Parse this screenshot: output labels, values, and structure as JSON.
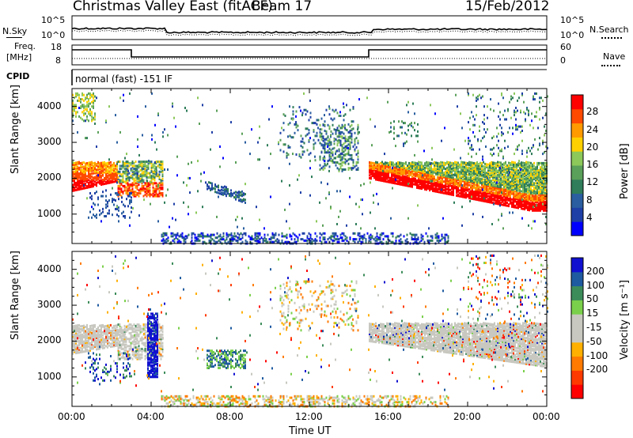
{
  "header": {
    "site": "Christmas Valley East",
    "fit": "(fitACF)",
    "beam": "Beam 17",
    "date": "15/Feb/2012"
  },
  "top_panels": {
    "nsky_label": "N.Sky",
    "nsky_ticks": [
      "10^5",
      "10^0"
    ],
    "nsearch_label": "N.Search",
    "nsearch_ticks": [
      "10^5",
      "10^0"
    ],
    "freq_label_1": "Freq.",
    "freq_label_2": "[MHz]",
    "freq_ticks": [
      "18",
      "8"
    ],
    "nave_label": "Nave",
    "nave_ticks": [
      "60",
      "0"
    ],
    "cpid_label": "CPID",
    "cpid_text": "normal (fast) -151 IF"
  },
  "colors": {
    "power_scale": [
      "#0000ff",
      "#1e3fa6",
      "#2a5ea0",
      "#2f7d5a",
      "#5aa05a",
      "#8cc85a",
      "#ffd000",
      "#ff9a00",
      "#ff4a00",
      "#ff0000"
    ],
    "velocity_scale": [
      "#1010d0",
      "#1e5aa0",
      "#3c8c5a",
      "#7ad04a",
      "#c8c8c0",
      "#c8c8c0",
      "#ffb000",
      "#ff7a00",
      "#ff3a00",
      "#ff0000"
    ]
  },
  "chart_data": [
    {
      "type": "heatmap",
      "title": "",
      "xlabel": "",
      "ylabel": "Slant Range [km]",
      "x_ticks": [
        "00:00",
        "04:00",
        "08:00",
        "12:00",
        "16:00",
        "20:00",
        "00:00"
      ],
      "y_ticks": [
        "1000",
        "2000",
        "3000",
        "4000"
      ],
      "ylim": [
        180,
        4500
      ],
      "colorbar": {
        "label": "Power [dB]",
        "ticks": [
          "4",
          "8",
          "12",
          "16",
          "20",
          "24",
          "28"
        ]
      },
      "approx_features": [
        {
          "x_start_h": 0.0,
          "x_end_h": 2.3,
          "range_low_km": 1650,
          "range_high_km": 2450,
          "level": "high"
        },
        {
          "x_start_h": 2.3,
          "x_end_h": 4.6,
          "range_low_km": 1500,
          "range_high_km": 2500,
          "level": "mixed"
        },
        {
          "x_start_h": 6.8,
          "x_end_h": 8.8,
          "range_low_km": 1250,
          "range_high_km": 1700,
          "level": "low"
        },
        {
          "x_start_h": 15.0,
          "x_end_h": 24.0,
          "range_low_km": 1100,
          "range_high_km": 2500,
          "level": "high"
        }
      ]
    },
    {
      "type": "heatmap",
      "title": "",
      "xlabel": "Time UT",
      "ylabel": "Slant Range [km]",
      "x_ticks": [
        "00:00",
        "04:00",
        "08:00",
        "12:00",
        "16:00",
        "20:00",
        "00:00"
      ],
      "y_ticks": [
        "1000",
        "2000",
        "3000",
        "4000"
      ],
      "ylim": [
        180,
        4500
      ],
      "colorbar": {
        "label": "Velocity [m s⁻¹]",
        "ticks": [
          "200",
          "100",
          "50",
          "15",
          "-15",
          "-50",
          "-100",
          "-200"
        ]
      },
      "approx_features": [
        {
          "x_start_h": 0.0,
          "x_end_h": 4.6,
          "range_low_km": 1650,
          "range_high_km": 2450,
          "level": "ground scatter"
        },
        {
          "x_start_h": 3.8,
          "x_end_h": 4.3,
          "range_low_km": 1000,
          "range_high_km": 2800,
          "level": "positive"
        },
        {
          "x_start_h": 15.0,
          "x_end_h": 24.0,
          "range_low_km": 1300,
          "range_high_km": 2500,
          "level": "ground scatter"
        }
      ]
    }
  ]
}
